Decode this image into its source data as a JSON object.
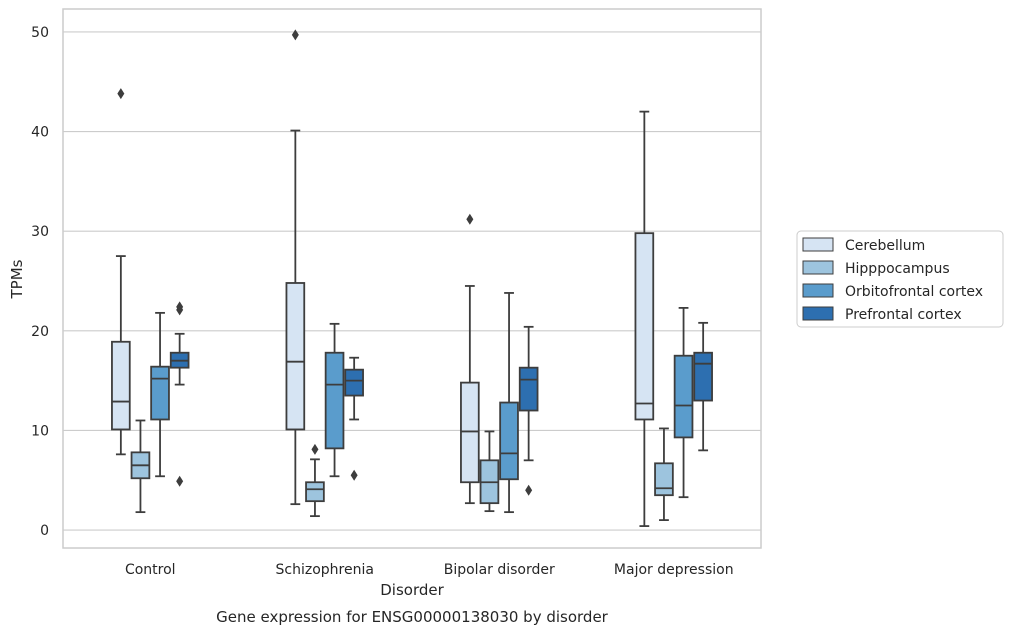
{
  "chart_data": {
    "type": "box",
    "title": "",
    "caption": "Gene expression for ENSG00000138030 by disorder",
    "xlabel": "Disorder",
    "ylabel": "TPMs",
    "ylim": [
      -1.8,
      52.3
    ],
    "yticks": [
      0,
      10,
      20,
      30,
      40,
      50
    ],
    "grid": "horizontal",
    "legend_position": "right",
    "categories": [
      "Control",
      "Schizophrenia",
      "Bipolar disorder",
      "Major depression"
    ],
    "series": [
      {
        "name": "Cerebellum",
        "color": "#d6e4f3",
        "boxes": [
          {
            "whisker_low": 7.6,
            "q1": 10.1,
            "median": 12.9,
            "q3": 18.9,
            "whisker_high": 27.5,
            "outliers": [
              43.8
            ]
          },
          {
            "whisker_low": 2.6,
            "q1": 10.1,
            "median": 16.9,
            "q3": 24.8,
            "whisker_high": 40.1,
            "outliers": [
              49.7
            ]
          },
          {
            "whisker_low": 2.7,
            "q1": 4.8,
            "median": 9.9,
            "q3": 14.8,
            "whisker_high": 24.5,
            "outliers": [
              31.2
            ]
          },
          {
            "whisker_low": 0.4,
            "q1": 11.1,
            "median": 12.7,
            "q3": 29.8,
            "whisker_high": 42.0,
            "outliers": []
          }
        ]
      },
      {
        "name": "Hipppocampus",
        "color": "#9dc4de",
        "boxes": [
          {
            "whisker_low": 1.8,
            "q1": 5.2,
            "median": 6.5,
            "q3": 7.8,
            "whisker_high": 11.0,
            "outliers": []
          },
          {
            "whisker_low": 1.4,
            "q1": 2.9,
            "median": 4.1,
            "q3": 4.8,
            "whisker_high": 7.1,
            "outliers": [
              8.1
            ]
          },
          {
            "whisker_low": 1.9,
            "q1": 2.7,
            "median": 4.8,
            "q3": 7.0,
            "whisker_high": 9.9,
            "outliers": []
          },
          {
            "whisker_low": 1.0,
            "q1": 3.5,
            "median": 4.2,
            "q3": 6.7,
            "whisker_high": 10.2,
            "outliers": []
          }
        ]
      },
      {
        "name": "Orbitofrontal cortex",
        "color": "#5a9ccc",
        "boxes": [
          {
            "whisker_low": 5.4,
            "q1": 11.1,
            "median": 15.2,
            "q3": 16.4,
            "whisker_high": 21.8,
            "outliers": []
          },
          {
            "whisker_low": 5.4,
            "q1": 8.2,
            "median": 14.6,
            "q3": 17.8,
            "whisker_high": 20.7,
            "outliers": []
          },
          {
            "whisker_low": 1.8,
            "q1": 5.1,
            "median": 7.7,
            "q3": 12.8,
            "whisker_high": 23.8,
            "outliers": []
          },
          {
            "whisker_low": 3.3,
            "q1": 9.3,
            "median": 12.5,
            "q3": 17.5,
            "whisker_high": 22.3,
            "outliers": []
          }
        ]
      },
      {
        "name": "Prefrontal cortex",
        "color": "#2d6fb0",
        "boxes": [
          {
            "whisker_low": 14.6,
            "q1": 16.3,
            "median": 17.0,
            "q3": 17.8,
            "whisker_high": 19.7,
            "outliers": [
              4.9,
              22.1,
              22.4
            ]
          },
          {
            "whisker_low": 11.1,
            "q1": 13.5,
            "median": 15.0,
            "q3": 16.1,
            "whisker_high": 17.3,
            "outliers": [
              5.5
            ]
          },
          {
            "whisker_low": 7.0,
            "q1": 12.0,
            "median": 15.1,
            "q3": 16.3,
            "whisker_high": 20.4,
            "outliers": [
              4.0
            ]
          },
          {
            "whisker_low": 8.0,
            "q1": 13.0,
            "median": 16.7,
            "q3": 17.8,
            "whisker_high": 20.8,
            "outliers": []
          }
        ]
      }
    ]
  }
}
